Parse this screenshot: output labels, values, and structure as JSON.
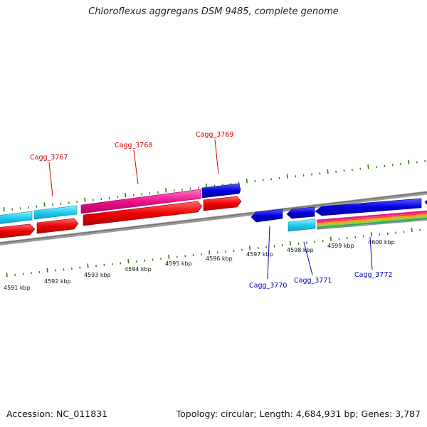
{
  "title": "Chloroflexus aggregans DSM 9485, complete genome",
  "footer": {
    "accession": "Accession: NC_011831",
    "summary": "Topology: circular; Length: 4,684,931 bp; Genes: 3,787"
  },
  "kbp_labels": [
    "4591 kbp",
    "4592 kbp",
    "4593 kbp",
    "4594 kbp",
    "4595 kbp",
    "4596 kbp",
    "4597 kbp",
    "4598 kbp",
    "4599 kbp",
    "4600 kbp"
  ],
  "gene_labels": {
    "top": [
      "Cagg_3767",
      "Cagg_3768",
      "Cagg_3769"
    ],
    "bottom": [
      "Cagg_3770",
      "Cagg_3771",
      "Cagg_3772"
    ]
  },
  "colors": {
    "forward_label": "#cc0000",
    "reverse_label": "#0000aa",
    "tick": "#2e7d00",
    "backbone": "#808080",
    "cds_red": "#ee0000",
    "cds_blue": "#0000dd",
    "cds_cyan": "#22ccee",
    "cds_magenta": "#ee1188"
  }
}
